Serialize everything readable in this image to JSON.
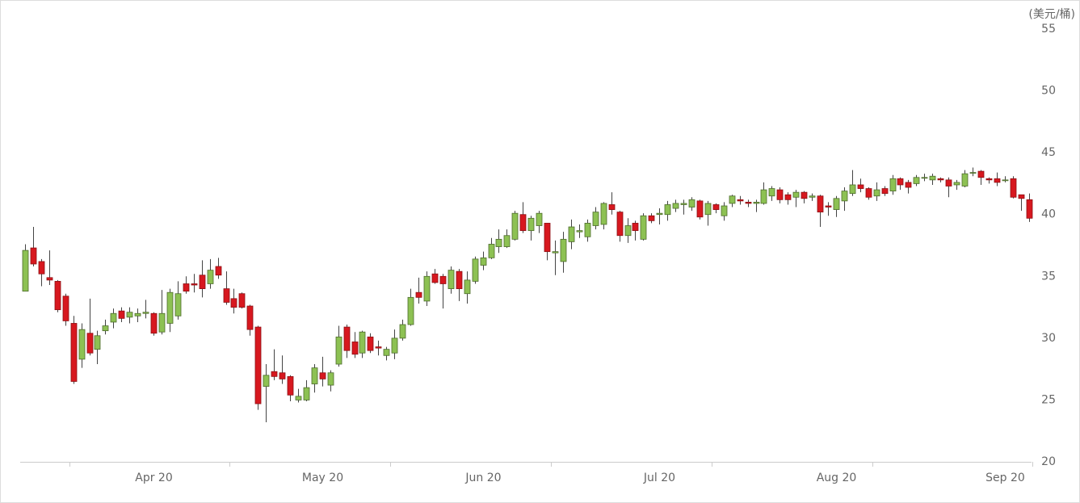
{
  "chart_data": {
    "type": "candlestick",
    "y_label": "(美元/桶)",
    "categories": [
      null,
      null,
      null,
      null,
      null,
      null,
      null,
      null,
      null,
      null,
      null,
      null,
      null,
      null,
      null,
      null,
      "Apr 20",
      null,
      null,
      null,
      null,
      null,
      null,
      null,
      null,
      null,
      null,
      null,
      null,
      null,
      null,
      null,
      null,
      null,
      null,
      null,
      null,
      "May 20",
      null,
      null,
      null,
      null,
      null,
      null,
      null,
      null,
      null,
      null,
      null,
      null,
      null,
      null,
      null,
      null,
      null,
      null,
      null,
      "Jun 20",
      null,
      null,
      null,
      null,
      null,
      null,
      null,
      null,
      null,
      null,
      null,
      null,
      null,
      null,
      null,
      null,
      null,
      null,
      null,
      null,
      null,
      "Jul 20",
      null,
      null,
      null,
      null,
      null,
      null,
      null,
      null,
      null,
      null,
      null,
      null,
      null,
      null,
      null,
      null,
      null,
      null,
      null,
      null,
      null,
      "Aug 20",
      null,
      null,
      null,
      null,
      null,
      null,
      null,
      null,
      null,
      null,
      null,
      null,
      null,
      null,
      null,
      null,
      null,
      null,
      null,
      null,
      "Sep 20",
      null,
      null,
      null
    ],
    "open": [
      33.8,
      37.3,
      36.2,
      34.9,
      34.6,
      33.4,
      31.2,
      28.3,
      30.4,
      29.1,
      30.6,
      31.3,
      32.2,
      31.7,
      31.8,
      32.0,
      32.0,
      30.5,
      31.2,
      31.8,
      34.4,
      34.4,
      35.1,
      34.4,
      35.8,
      34.0,
      33.2,
      33.6,
      32.6,
      30.9,
      26.1,
      27.3,
      27.2,
      26.9,
      25.0,
      25.0,
      26.3,
      27.2,
      26.2,
      27.9,
      30.9,
      29.7,
      28.8,
      30.1,
      29.3,
      28.6,
      28.8,
      30.0,
      31.1,
      33.7,
      33.0,
      35.2,
      35.0,
      34.0,
      35.4,
      33.6,
      34.6,
      35.9,
      36.5,
      37.4,
      37.4,
      38.0,
      40.0,
      38.7,
      39.1,
      39.3,
      36.9,
      36.2,
      37.8,
      38.6,
      38.2,
      39.1,
      39.2,
      40.8,
      40.2,
      38.3,
      39.3,
      38.0,
      39.9,
      40.0,
      40.0,
      40.5,
      40.8,
      40.6,
      41.1,
      40.0,
      40.8,
      39.9,
      40.9,
      41.2,
      41.0,
      40.9,
      40.9,
      41.5,
      42.0,
      41.6,
      41.4,
      41.8,
      41.4,
      41.5,
      40.7,
      40.4,
      41.1,
      41.7,
      42.4,
      42.1,
      41.5,
      42.1,
      41.9,
      42.9,
      42.6,
      42.5,
      43.0,
      42.8,
      42.9,
      42.8,
      42.4,
      42.3,
      43.4,
      43.5,
      42.9,
      42.9,
      42.8,
      42.9,
      41.6,
      41.2
    ],
    "high": [
      37.6,
      39.0,
      36.4,
      37.1,
      34.7,
      33.6,
      31.8,
      31.2,
      33.2,
      30.6,
      31.5,
      32.4,
      32.5,
      32.5,
      32.4,
      33.1,
      32.1,
      33.9,
      34.0,
      34.6,
      35.0,
      35.2,
      36.3,
      36.4,
      36.5,
      35.4,
      34.0,
      33.7,
      32.7,
      31.0,
      27.9,
      29.1,
      28.6,
      27.0,
      25.9,
      26.6,
      27.9,
      28.5,
      27.4,
      31.0,
      31.1,
      30.5,
      30.6,
      30.4,
      29.8,
      29.3,
      30.7,
      31.5,
      34.0,
      34.9,
      35.4,
      35.6,
      35.2,
      35.8,
      35.6,
      35.4,
      36.6,
      37.0,
      38.1,
      38.8,
      38.8,
      40.3,
      41.0,
      39.9,
      40.3,
      39.3,
      37.9,
      38.6,
      39.6,
      39.2,
      39.6,
      40.6,
      41.0,
      41.8,
      40.3,
      39.7,
      39.5,
      40.1,
      40.1,
      40.5,
      41.1,
      41.2,
      41.2,
      41.4,
      41.2,
      41.1,
      40.9,
      41.0,
      41.6,
      41.5,
      41.2,
      41.2,
      42.6,
      42.3,
      42.2,
      41.8,
      42.0,
      41.9,
      41.7,
      41.6,
      41.0,
      41.5,
      42.2,
      43.6,
      42.9,
      42.2,
      42.6,
      42.3,
      43.2,
      43.0,
      42.8,
      43.2,
      43.3,
      43.3,
      43.0,
      43.0,
      42.8,
      43.6,
      43.8,
      43.6,
      43.0,
      43.4,
      43.1,
      43.1,
      41.6,
      41.7
    ],
    "low": [
      33.8,
      35.8,
      34.2,
      34.3,
      32.1,
      31.0,
      26.3,
      27.6,
      28.6,
      27.9,
      30.3,
      30.8,
      31.3,
      31.2,
      31.3,
      31.6,
      30.2,
      30.3,
      30.5,
      31.5,
      33.6,
      33.7,
      33.3,
      34.0,
      34.8,
      32.7,
      32.0,
      32.4,
      30.2,
      24.2,
      23.2,
      26.6,
      26.3,
      24.9,
      24.8,
      24.9,
      25.6,
      26.1,
      25.7,
      27.7,
      28.4,
      28.4,
      28.4,
      28.8,
      28.6,
      28.2,
      28.3,
      29.8,
      31.0,
      32.8,
      32.6,
      34.4,
      32.4,
      33.6,
      33.0,
      32.8,
      34.4,
      35.5,
      36.4,
      36.9,
      37.3,
      37.9,
      38.5,
      37.9,
      38.5,
      36.3,
      35.1,
      35.3,
      37.2,
      38.1,
      37.8,
      38.8,
      38.8,
      40.0,
      37.8,
      37.7,
      37.9,
      37.9,
      39.3,
      39.2,
      39.5,
      40.2,
      40.0,
      40.3,
      39.6,
      39.1,
      40.1,
      39.5,
      40.6,
      40.8,
      40.6,
      40.2,
      40.8,
      41.1,
      40.9,
      40.8,
      40.6,
      40.9,
      41.1,
      39.0,
      39.9,
      39.8,
      40.3,
      41.5,
      41.8,
      41.2,
      41.1,
      41.5,
      41.6,
      42.0,
      41.7,
      42.3,
      42.7,
      42.4,
      42.6,
      41.4,
      42.0,
      42.2,
      43.1,
      42.4,
      42.5,
      42.3,
      42.6,
      41.3,
      40.3,
      39.4
    ],
    "close": [
      37.1,
      36.0,
      35.2,
      34.7,
      32.3,
      31.4,
      26.5,
      30.7,
      28.8,
      30.2,
      31.0,
      32.0,
      31.6,
      32.1,
      32.0,
      32.1,
      30.4,
      32.0,
      33.7,
      33.6,
      33.8,
      34.3,
      34.0,
      35.5,
      35.1,
      32.9,
      32.5,
      32.5,
      30.7,
      24.7,
      27.0,
      26.9,
      26.7,
      25.4,
      25.3,
      26.0,
      27.6,
      26.7,
      27.2,
      30.1,
      29.0,
      28.7,
      30.5,
      29.0,
      29.2,
      29.1,
      30.0,
      31.1,
      33.3,
      33.3,
      35.0,
      34.5,
      34.4,
      35.5,
      34.0,
      34.7,
      36.4,
      36.5,
      37.6,
      38.0,
      38.3,
      40.1,
      38.7,
      39.7,
      40.1,
      37.0,
      37.0,
      38.0,
      39.0,
      38.7,
      39.3,
      40.2,
      40.9,
      40.4,
      38.3,
      39.1,
      38.7,
      39.9,
      39.5,
      40.1,
      40.8,
      40.9,
      40.9,
      41.2,
      39.8,
      40.9,
      40.4,
      40.7,
      41.5,
      41.1,
      40.9,
      41.0,
      42.0,
      42.1,
      41.2,
      41.2,
      41.8,
      41.3,
      41.5,
      40.2,
      40.6,
      41.3,
      41.9,
      42.4,
      42.1,
      41.4,
      42.0,
      41.7,
      42.9,
      42.4,
      42.2,
      43.0,
      43.0,
      43.1,
      42.8,
      42.3,
      42.6,
      43.3,
      43.4,
      43.0,
      42.8,
      42.6,
      42.8,
      41.4,
      41.3,
      39.7
    ],
    "ylim": [
      20,
      55
    ],
    "yticks": [
      20,
      25,
      30,
      35,
      40,
      45,
      50,
      55
    ],
    "up_color": "#8dc153",
    "down_color": "#d7181f"
  }
}
